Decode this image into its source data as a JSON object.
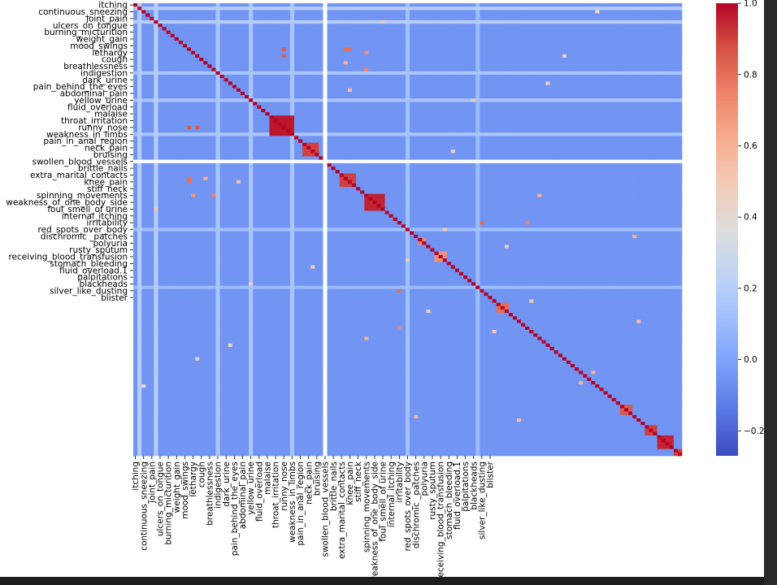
{
  "chart_data": {
    "type": "heatmap",
    "title": "",
    "xlabel": "",
    "ylabel": "",
    "colormap": "coolwarm",
    "colormap_stops": [
      "#3b4cc0",
      "#5977e3",
      "#7b9ff9",
      "#9ebeff",
      "#c0d4f5",
      "#dddcdc",
      "#f2cbb7",
      "#f7ac8e",
      "#ee8468",
      "#d65244",
      "#b40426"
    ],
    "vmin": -0.27,
    "vmax": 1.0,
    "colorbar_ticks": [
      "1.0",
      "0.8",
      "0.6",
      "0.4",
      "0.2",
      "0.0",
      "−0.2"
    ],
    "colorbar_tick_values": [
      1.0,
      0.8,
      0.6,
      0.4,
      0.2,
      0.0,
      -0.2
    ],
    "n_features": 133,
    "undefined_feature_index": 46,
    "diagonal_value": 1.0,
    "background_value": -0.05,
    "labeled_ticks": [
      {
        "index": 0,
        "label": "itching"
      },
      {
        "index": 2,
        "label": "continuous_sneezing"
      },
      {
        "index": 4,
        "label": "joint_pain"
      },
      {
        "index": 6,
        "label": "ulcers_on_tongue"
      },
      {
        "index": 8,
        "label": "burning_micturition"
      },
      {
        "index": 10,
        "label": "weight_gain"
      },
      {
        "index": 12,
        "label": "mood_swings"
      },
      {
        "index": 14,
        "label": "lethargy"
      },
      {
        "index": 16,
        "label": "cough"
      },
      {
        "index": 18,
        "label": "breathlessness"
      },
      {
        "index": 20,
        "label": "indigestion"
      },
      {
        "index": 22,
        "label": "dark_urine"
      },
      {
        "index": 24,
        "label": "pain_behind_the_eyes"
      },
      {
        "index": 26,
        "label": "abdominal_pain"
      },
      {
        "index": 28,
        "label": "yellow_urine"
      },
      {
        "index": 30,
        "label": "fluid_overload"
      },
      {
        "index": 32,
        "label": "malaise"
      },
      {
        "index": 34,
        "label": "throat_irritation"
      },
      {
        "index": 36,
        "label": "runny_nose"
      },
      {
        "index": 38,
        "label": "weakness_in_limbs"
      },
      {
        "index": 40,
        "label": "pain_in_anal_region"
      },
      {
        "index": 42,
        "label": "neck_pain"
      },
      {
        "index": 44,
        "label": "bruising"
      },
      {
        "index": 46,
        "label": "swollen_blood_vessels"
      },
      {
        "index": 48,
        "label": "brittle_nails"
      },
      {
        "index": 50,
        "label": "extra_marital_contacts"
      },
      {
        "index": 52,
        "label": "knee_pain"
      },
      {
        "index": 54,
        "label": "stiff_neck"
      },
      {
        "index": 56,
        "label": "spinning_movements"
      },
      {
        "index": 58,
        "label": "weakness_of_one_body_side"
      },
      {
        "index": 60,
        "label": "foul_smell_of urine"
      },
      {
        "index": 62,
        "label": "internal_itching"
      },
      {
        "index": 64,
        "label": "irritability"
      },
      {
        "index": 66,
        "label": "red_spots_over_body"
      },
      {
        "index": 68,
        "label": "dischromic _patches"
      },
      {
        "index": 70,
        "label": "polyuria"
      },
      {
        "index": 72,
        "label": "rusty_sputum"
      },
      {
        "index": 74,
        "label": "receiving_blood_transfusion"
      },
      {
        "index": 76,
        "label": "stomach_bleeding"
      },
      {
        "index": 78,
        "label": "fluid_overload.1"
      },
      {
        "index": 80,
        "label": "palpitations"
      },
      {
        "index": 82,
        "label": "blackheads"
      },
      {
        "index": 84,
        "label": "silver_like_dusting"
      },
      {
        "index": 86,
        "label": "blister"
      }
    ],
    "correlated_blocks": [
      {
        "indices": [
          33,
          34,
          35,
          36,
          37,
          38
        ],
        "value": 0.97
      },
      {
        "indices": [
          41,
          42,
          43,
          44
        ],
        "value": 0.9
      },
      {
        "indices": [
          50,
          51,
          52,
          53
        ],
        "value": 0.9
      },
      {
        "indices": [
          56,
          57,
          58,
          59,
          60
        ],
        "value": 0.95
      },
      {
        "indices": [
          69,
          70
        ],
        "value": 0.75
      },
      {
        "indices": [
          73,
          74,
          75
        ],
        "value": 0.7
      },
      {
        "indices": [
          88,
          89,
          90
        ],
        "value": 0.8
      },
      {
        "indices": [
          118,
          119,
          120
        ],
        "value": 0.85
      },
      {
        "indices": [
          124,
          125,
          126
        ],
        "value": 0.9
      },
      {
        "indices": [
          127,
          128,
          129,
          130
        ],
        "value": 0.95
      },
      {
        "indices": [
          131,
          132
        ],
        "value": 0.9
      }
    ],
    "notable_pairs": [
      {
        "i": 36,
        "j": 13,
        "value": 0.85
      },
      {
        "i": 36,
        "j": 15,
        "value": 0.85
      },
      {
        "i": 51,
        "j": 13,
        "value": 0.8
      },
      {
        "i": 52,
        "j": 13,
        "value": 0.8
      },
      {
        "i": 56,
        "j": 14,
        "value": 0.7
      },
      {
        "i": 56,
        "j": 19,
        "value": 0.75
      },
      {
        "i": 17,
        "j": 51,
        "value": 0.6
      },
      {
        "i": 25,
        "j": 52,
        "value": 0.55
      },
      {
        "i": 64,
        "j": 84,
        "value": 0.8
      },
      {
        "i": 64,
        "j": 95,
        "value": 0.75
      },
      {
        "i": 98,
        "j": 56,
        "value": 0.6
      },
      {
        "i": 66,
        "j": 75,
        "value": 0.5
      },
      {
        "i": 100,
        "j": 23,
        "value": 0.45
      },
      {
        "i": 108,
        "j": 111,
        "value": 0.6
      },
      {
        "i": 121,
        "j": 68,
        "value": 0.6
      },
      {
        "i": 122,
        "j": 93,
        "value": 0.55
      },
      {
        "i": 90,
        "j": 71,
        "value": 0.5
      },
      {
        "i": 46,
        "j": 60,
        "value": 0.6
      },
      {
        "i": 60,
        "j": 5,
        "value": 0.5
      },
      {
        "i": 15,
        "j": 104,
        "value": 0.45
      },
      {
        "i": 96,
        "j": 87,
        "value": 0.5
      },
      {
        "i": 112,
        "j": 2,
        "value": 0.4
      },
      {
        "i": 77,
        "j": 43,
        "value": 0.45
      },
      {
        "i": 82,
        "j": 28,
        "value": 0.45
      }
    ],
    "light_columns": [
      {
        "index": 1,
        "value": 0.2
      },
      {
        "index": 5,
        "value": 0.2
      },
      {
        "index": 20,
        "value": 0.15
      },
      {
        "index": 28,
        "value": 0.15
      },
      {
        "index": 38,
        "value": 0.15
      },
      {
        "index": 66,
        "value": 0.12
      },
      {
        "index": 83,
        "value": 0.1
      }
    ]
  }
}
